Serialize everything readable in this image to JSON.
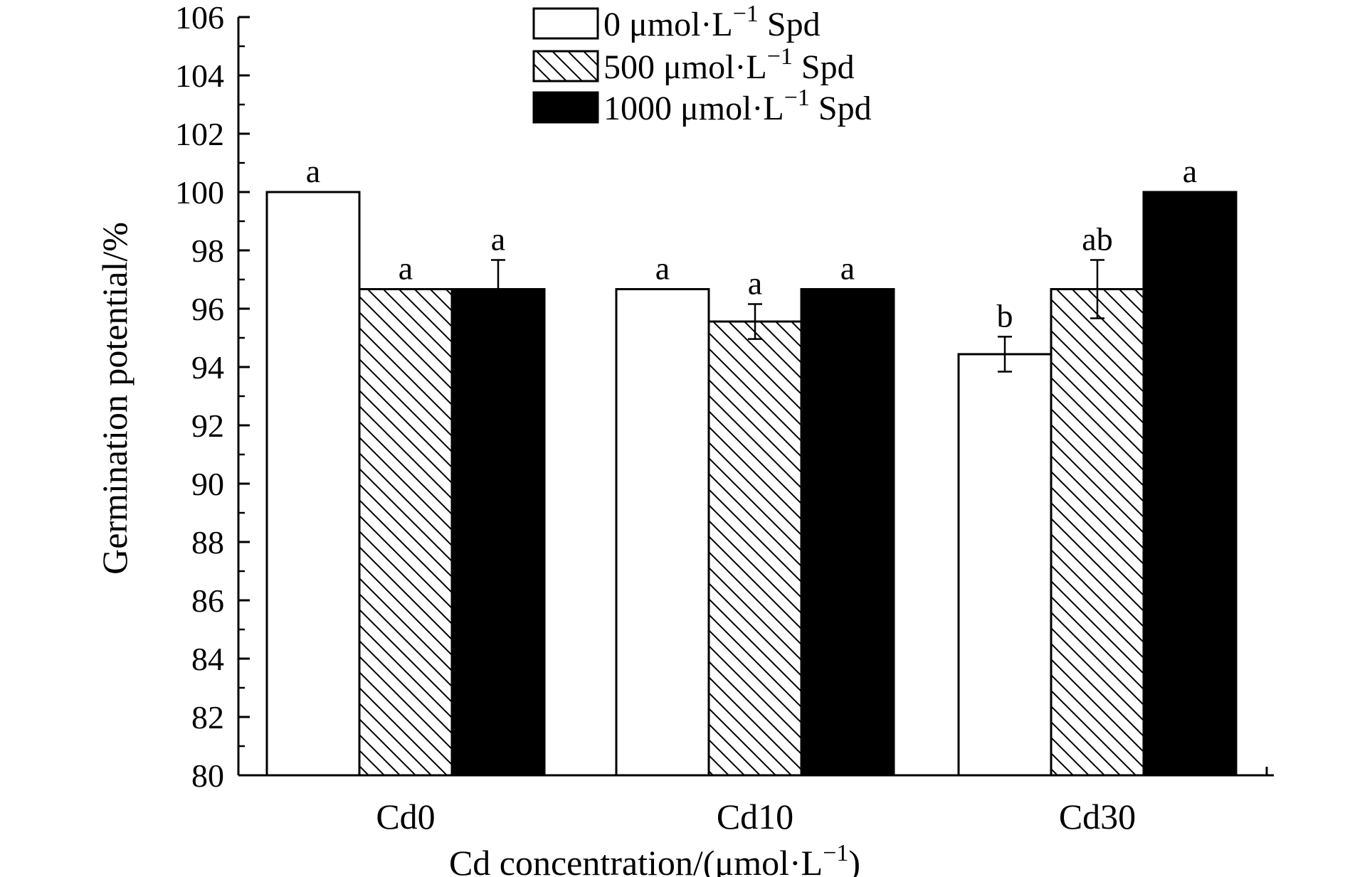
{
  "chart_data": {
    "type": "bar",
    "title": "",
    "xlabel": "Cd concentration/(μmol·L",
    "xlabel_sup": "−1",
    "xlabel_end": ")",
    "ylabel": "Germination potential/%",
    "ylim": [
      80,
      106
    ],
    "yticks": [
      "80",
      "82",
      "84",
      "86",
      "88",
      "90",
      "92",
      "94",
      "96",
      "98",
      "100",
      "102",
      "104",
      "106"
    ],
    "categories": [
      "Cd0",
      "Cd10",
      "Cd30"
    ],
    "legend_position": "top-center",
    "series": [
      {
        "name": "0 μmol·L",
        "name_sup": "−1",
        "name_end": " Spd",
        "fill": "white",
        "values": [
          100,
          96.67,
          94.44
        ],
        "errors": [
          0,
          0,
          0.6
        ],
        "labels": [
          "a",
          "a",
          "b"
        ]
      },
      {
        "name": "500 μmol·L",
        "name_sup": "−1",
        "name_end": " Spd",
        "fill": "hatch",
        "values": [
          96.67,
          95.56,
          96.67
        ],
        "errors": [
          0,
          0.6,
          1.0
        ],
        "labels": [
          "a",
          "a",
          "ab"
        ]
      },
      {
        "name": "1000 μmol·L",
        "name_sup": "−1",
        "name_end": " Spd",
        "fill": "black",
        "values": [
          96.67,
          96.67,
          100
        ],
        "errors": [
          1.0,
          0,
          0
        ],
        "labels": [
          "a",
          "a",
          "a"
        ]
      }
    ]
  }
}
